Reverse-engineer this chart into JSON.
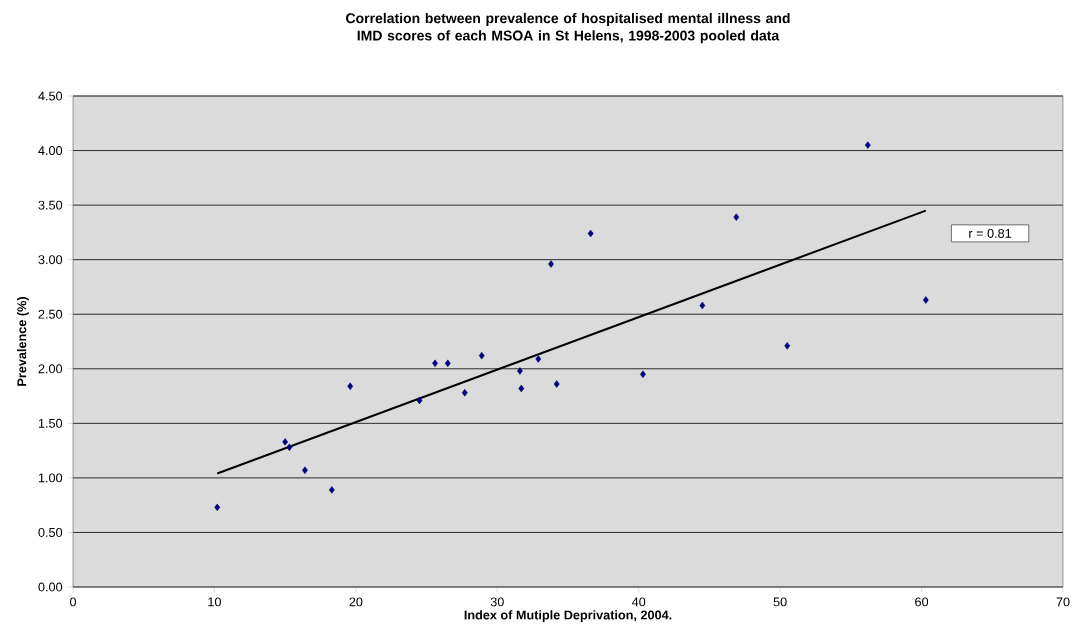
{
  "chart_data": {
    "type": "scatter",
    "title": "Correlation between prevalence of hospitalised mental illness and IMD scores of each MSOA in St Helens, 1998-2003 pooled data",
    "xlabel": "Index of Mutiple Deprivation, 2004.",
    "ylabel": "Prevalence (%)",
    "series": [
      {
        "color": "#000080",
        "marker": "diamond",
        "x": [
          10.2,
          15.0,
          15.3,
          16.4,
          18.3,
          19.6,
          24.5,
          25.6,
          26.5,
          27.7,
          28.9,
          31.6,
          31.7,
          32.9,
          33.8,
          34.2,
          36.6,
          40.3,
          44.5,
          46.9,
          50.5,
          56.2,
          60.3
        ],
        "values": [
          0.73,
          1.33,
          1.28,
          1.07,
          0.89,
          1.84,
          1.71,
          2.05,
          2.05,
          1.78,
          2.12,
          1.98,
          1.82,
          2.09,
          2.96,
          1.86,
          3.24,
          1.95,
          2.58,
          3.39,
          2.21,
          4.05,
          2.63
        ]
      },
      {
        "type": "line",
        "color": "#000000",
        "marker": "none",
        "x": [
          10.2,
          60.3
        ],
        "values": [
          1.04,
          3.45
        ]
      }
    ],
    "annotations": [
      "r = 0.81"
    ],
    "xlim": [
      0,
      70
    ],
    "xticks": [
      0,
      10,
      20,
      30,
      40,
      50,
      60,
      70
    ],
    "ylim": [
      0,
      4.5
    ],
    "yticks": [
      {
        "value": 0,
        "label": "0.00"
      },
      {
        "value": 0.5,
        "label": "0.50"
      },
      {
        "value": 1,
        "label": "1.00"
      },
      {
        "value": 1.5,
        "label": "1.50"
      },
      {
        "value": 2,
        "label": "2.00"
      },
      {
        "value": 2.5,
        "label": "2.50"
      },
      {
        "value": 3,
        "label": "3.00"
      },
      {
        "value": 3.5,
        "label": "3.50"
      },
      {
        "value": 4,
        "label": "4.00"
      },
      {
        "value": 4.5,
        "label": "4.50"
      }
    ],
    "grid": "y"
  }
}
